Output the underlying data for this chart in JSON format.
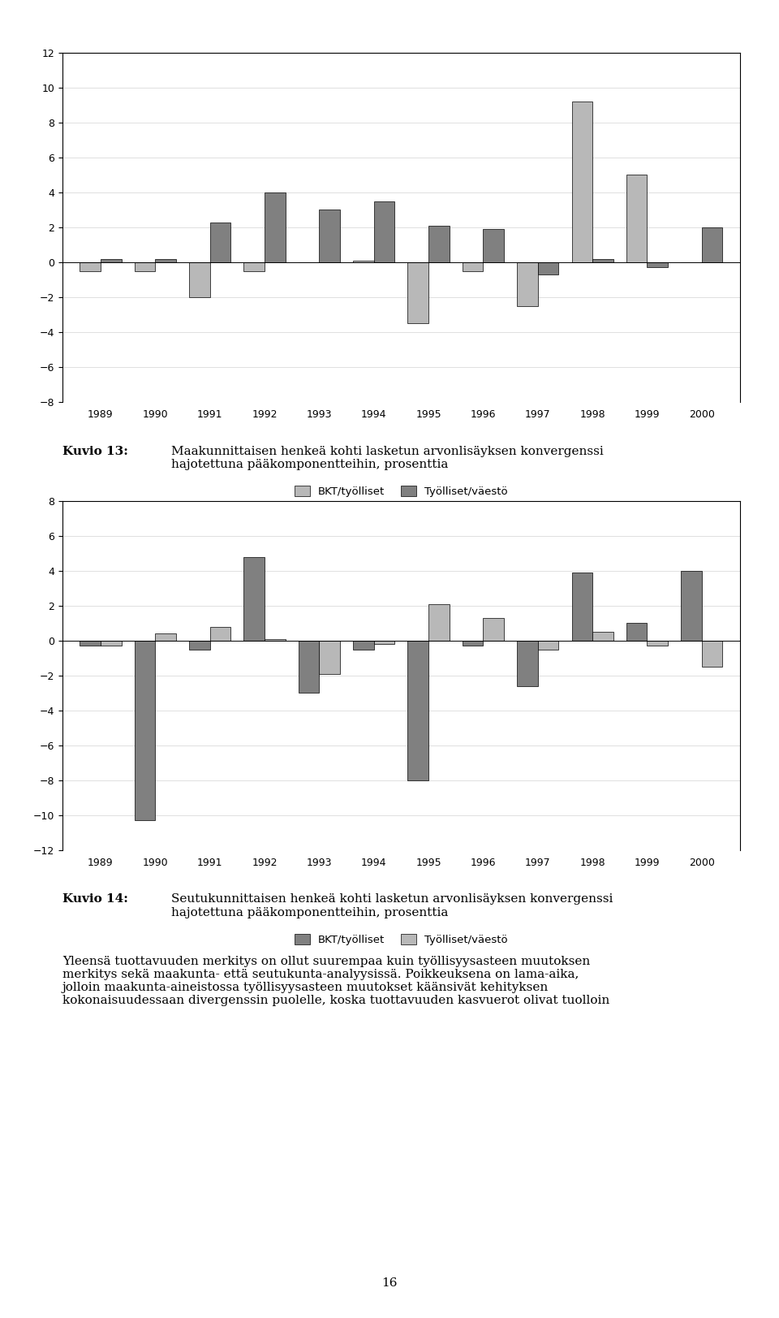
{
  "years": [
    1989,
    1990,
    1991,
    1992,
    1993,
    1994,
    1995,
    1996,
    1997,
    1998,
    1999,
    2000
  ],
  "chart1_bkt": [
    -0.5,
    -0.5,
    -2.0,
    -0.5,
    0.0,
    0.1,
    -3.5,
    -0.5,
    -2.5,
    9.2,
    5.0,
    0.0
  ],
  "chart1_tyo": [
    0.2,
    0.2,
    2.3,
    4.0,
    3.0,
    3.5,
    2.1,
    1.9,
    -0.7,
    0.2,
    -0.3,
    2.0
  ],
  "chart1_ylim": [
    -8,
    12
  ],
  "chart1_yticks": [
    -8,
    -6,
    -4,
    -2,
    0,
    2,
    4,
    6,
    8,
    10,
    12
  ],
  "chart2_bkt": [
    -0.3,
    -10.3,
    -0.5,
    4.8,
    -3.0,
    -0.5,
    -8.0,
    -0.3,
    -2.6,
    3.9,
    1.0,
    4.0
  ],
  "chart2_tyo": [
    -0.3,
    0.4,
    0.8,
    0.1,
    -1.9,
    -0.2,
    2.1,
    1.3,
    -0.5,
    0.5,
    -0.3,
    -1.5
  ],
  "chart2_ylim": [
    -12,
    8
  ],
  "chart2_yticks": [
    -12,
    -10,
    -8,
    -6,
    -4,
    -2,
    0,
    2,
    4,
    6,
    8
  ],
  "color_light": "#b8b8b8",
  "color_dark": "#808080",
  "legend_label1": "BKT/työlliset",
  "legend_label2": "Työlliset/väestö",
  "caption13_bold": "Kuvio 13:",
  "caption13_text": "Maakunnittaisen henkeä kohti lasketun arvonlisäyksen konvergenssi\nhajotettuna pääkomponentteihin, prosenttia",
  "caption14_bold": "Kuvio 14:",
  "caption14_text": "Seutukunnittaisen henkeä kohti lasketun arvonlisäyksen konvergenssi\nhajotettuna pääkomponentteihin, prosenttia",
  "body_line1": "Yleensä tuottavuuden merkitys on ollut suurempaa kuin työllisyysasteen muutoksen",
  "body_line2": "merkitys sekä maakunta- että seutukunta-analyysissä. Poikkeuksena on lama-aika,",
  "body_line3": "jolloin maakunta-aineistossa työllisyysasteen muutokset käänsivät kehityksen",
  "body_line4": "kokonaisuudessaan divergenssin puolelle, koska tuottavuuden kasvuerot olivat tuolloin",
  "page_number": "16",
  "background_color": "#ffffff"
}
